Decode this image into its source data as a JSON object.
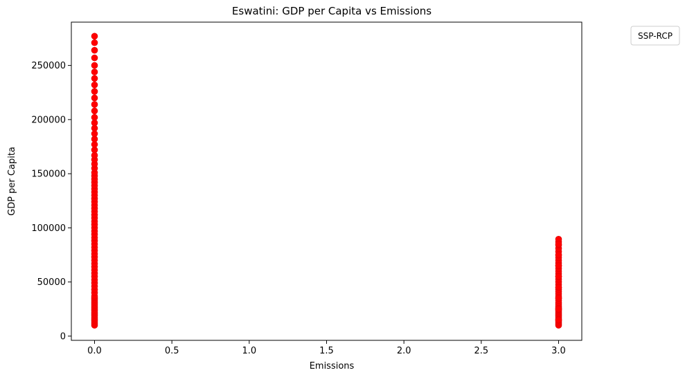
{
  "chart_data": {
    "type": "scatter",
    "title": "Eswatini: GDP per Capita vs Emissions",
    "xlabel": "Emissions",
    "ylabel": "GDP per Capita",
    "xlim": [
      -0.15,
      3.15
    ],
    "ylim": [
      -3900,
      290000
    ],
    "xticks": [
      0.0,
      0.5,
      1.0,
      1.5,
      2.0,
      2.5,
      3.0
    ],
    "xtick_labels": [
      "0.0",
      "0.5",
      "1.0",
      "1.5",
      "2.0",
      "2.5",
      "3.0"
    ],
    "yticks": [
      0,
      50000,
      100000,
      150000,
      200000,
      250000
    ],
    "ytick_labels": [
      "0",
      "50000",
      "100000",
      "150000",
      "200000",
      "250000"
    ],
    "grid": false,
    "legend": {
      "title": "SSP-RCP",
      "placement": "outside top-right",
      "entries": []
    },
    "marker_color": "#ff0000",
    "marker_edge_color": "#e00000",
    "series": [
      {
        "x": [
          0,
          0,
          0,
          0,
          0,
          0,
          0,
          0,
          0,
          0,
          0,
          0,
          0,
          0,
          0,
          0,
          0,
          0,
          0,
          0,
          0,
          0,
          0,
          0,
          0,
          0,
          0,
          0,
          0,
          0,
          0,
          0,
          0,
          0,
          0,
          0,
          0,
          0,
          0,
          0,
          0,
          0,
          0,
          0,
          0,
          0,
          0,
          0,
          0,
          0,
          0,
          0,
          0,
          0,
          0,
          0,
          0,
          0,
          0,
          0,
          0,
          0,
          0,
          0,
          0,
          0,
          0,
          0,
          0,
          0,
          0,
          0,
          0,
          0,
          0,
          0,
          0,
          0,
          0,
          0,
          3,
          3,
          3,
          3,
          3,
          3,
          3,
          3,
          3,
          3,
          3,
          3,
          3,
          3,
          3,
          3,
          3,
          3,
          3,
          3,
          3,
          3,
          3,
          3,
          3,
          3,
          3,
          3,
          3,
          3,
          3,
          3,
          3,
          3,
          3,
          3,
          3,
          3,
          3,
          3,
          3,
          3,
          3,
          3,
          3,
          3,
          3,
          3,
          3,
          3
        ],
        "y": [
          10000,
          11500,
          13000,
          14500,
          16000,
          17500,
          19000,
          20500,
          22000,
          23500,
          25000,
          26500,
          28000,
          29500,
          31000,
          32500,
          34000,
          35500,
          37000,
          40000,
          43000,
          46000,
          49000,
          52000,
          55000,
          58000,
          61000,
          64000,
          67000,
          70000,
          73000,
          76000,
          79000,
          82000,
          85000,
          88000,
          91000,
          94000,
          97000,
          100000,
          103000,
          106000,
          109000,
          112000,
          115000,
          118000,
          121000,
          124000,
          127000,
          130000,
          133000,
          136000,
          139000,
          142000,
          145000,
          148000,
          151000,
          155000,
          159000,
          163000,
          167000,
          172000,
          177000,
          182000,
          187000,
          192000,
          197000,
          202000,
          208000,
          214000,
          220000,
          226000,
          232000,
          238000,
          244000,
          250000,
          257000,
          264000,
          271000,
          277000,
          10000,
          11200,
          12400,
          13600,
          14800,
          16000,
          17200,
          18400,
          19600,
          20800,
          22000,
          23200,
          24400,
          25600,
          26800,
          28000,
          29500,
          31000,
          33000,
          35000,
          37000,
          39000,
          41000,
          43000,
          45000,
          47500,
          50000,
          52500,
          55000,
          57500,
          60000,
          62500,
          65000,
          67500,
          70000,
          72500,
          75000,
          78000,
          81000,
          84000,
          87000,
          89500,
          15000,
          25000,
          35000,
          45000,
          55000,
          65000,
          75000,
          85000
        ]
      }
    ]
  }
}
